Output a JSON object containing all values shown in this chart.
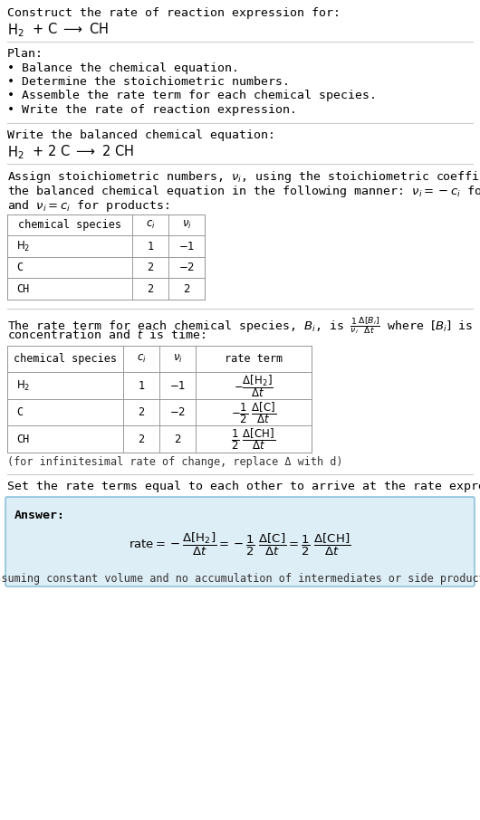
{
  "bg_color": "#ffffff",
  "text_color": "#000000",
  "light_blue_bg": "#deeef6",
  "border_color": "#7ab8d4",
  "table_border": "#999999",
  "font_family": "DejaVu Sans Mono",
  "section1_title": "Construct the rate of reaction expression for:",
  "section2_title": "Plan:",
  "section2_bullets": [
    "• Balance the chemical equation.",
    "• Determine the stoichiometric numbers.",
    "• Assemble the rate term for each chemical species.",
    "• Write the rate of reaction expression."
  ],
  "section3_title": "Write the balanced chemical equation:",
  "section4_intro_lines": [
    "Assign stoichiometric numbers, $\\nu_i$, using the stoichiometric coefficients, $c_i$, from",
    "the balanced chemical equation in the following manner: $\\nu_i = -c_i$ for reactants",
    "and $\\nu_i = c_i$ for products:"
  ],
  "section5_intro_lines": [
    "The rate term for each chemical species, $B_i$, is $\\frac{1}{\\nu_i}\\frac{\\Delta[B_i]}{\\Delta t}$ where $[B_i]$ is the amount",
    "concentration and $t$ is time:"
  ],
  "infinitesimal_note": "(for infinitesimal rate of change, replace Δ with d)",
  "section6_intro": "Set the rate terms equal to each other to arrive at the rate expression:",
  "answer_label": "Answer:",
  "answer_note": "(assuming constant volume and no accumulation of intermediates or side products)"
}
